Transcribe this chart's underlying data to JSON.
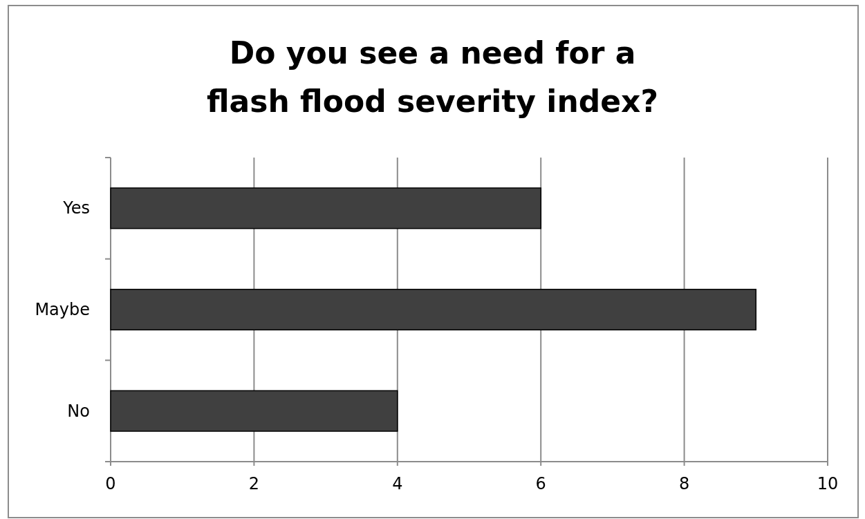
{
  "chart_data": {
    "type": "bar",
    "orientation": "horizontal",
    "title": "Do you see a need for a\nflash flood severity index?",
    "categories": [
      "Yes",
      "Maybe",
      "No"
    ],
    "values": [
      6,
      9,
      4
    ],
    "color": "#404040",
    "xlim": [
      0,
      10
    ],
    "xticks": [
      0,
      2,
      4,
      6,
      8,
      10
    ],
    "grid": "x"
  }
}
